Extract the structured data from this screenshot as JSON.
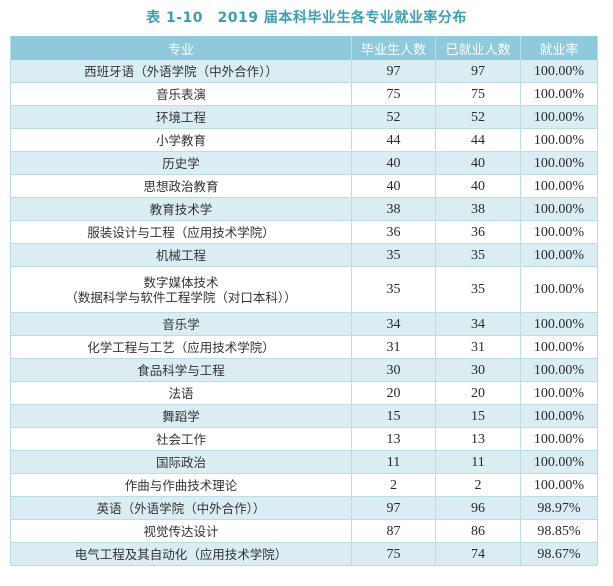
{
  "title": "表 1-10　2019 届本科毕业生各专业就业率分布",
  "table": {
    "headers": [
      "专业",
      "毕业生人数",
      "已就业人数",
      "就业率"
    ],
    "rows": [
      {
        "major": "西班牙语（外语学院（中外合作））",
        "graduates": "97",
        "employed": "97",
        "rate": "100.00%"
      },
      {
        "major": "音乐表演",
        "graduates": "75",
        "employed": "75",
        "rate": "100.00%"
      },
      {
        "major": "环境工程",
        "graduates": "52",
        "employed": "52",
        "rate": "100.00%"
      },
      {
        "major": "小学教育",
        "graduates": "44",
        "employed": "44",
        "rate": "100.00%"
      },
      {
        "major": "历史学",
        "graduates": "40",
        "employed": "40",
        "rate": "100.00%"
      },
      {
        "major": "思想政治教育",
        "graduates": "40",
        "employed": "40",
        "rate": "100.00%"
      },
      {
        "major": "教育技术学",
        "graduates": "38",
        "employed": "38",
        "rate": "100.00%"
      },
      {
        "major": "服装设计与工程（应用技术学院）",
        "graduates": "36",
        "employed": "36",
        "rate": "100.00%"
      },
      {
        "major": "机械工程",
        "graduates": "35",
        "employed": "35",
        "rate": "100.00%"
      },
      {
        "major": "数字媒体技术",
        "major_line2": "（数据科学与软件工程学院（对口本科））",
        "graduates": "35",
        "employed": "35",
        "rate": "100.00%"
      },
      {
        "major": "音乐学",
        "graduates": "34",
        "employed": "34",
        "rate": "100.00%"
      },
      {
        "major": "化学工程与工艺（应用技术学院）",
        "graduates": "31",
        "employed": "31",
        "rate": "100.00%"
      },
      {
        "major": "食品科学与工程",
        "graduates": "30",
        "employed": "30",
        "rate": "100.00%"
      },
      {
        "major": "法语",
        "graduates": "20",
        "employed": "20",
        "rate": "100.00%"
      },
      {
        "major": "舞蹈学",
        "graduates": "15",
        "employed": "15",
        "rate": "100.00%"
      },
      {
        "major": "社会工作",
        "graduates": "13",
        "employed": "13",
        "rate": "100.00%"
      },
      {
        "major": "国际政治",
        "graduates": "11",
        "employed": "11",
        "rate": "100.00%"
      },
      {
        "major": "作曲与作曲技术理论",
        "graduates": "2",
        "employed": "2",
        "rate": "100.00%"
      },
      {
        "major": "英语（外语学院（中外合作））",
        "graduates": "97",
        "employed": "96",
        "rate": "98.97%"
      },
      {
        "major": "视觉传达设计",
        "graduates": "87",
        "employed": "86",
        "rate": "98.85%"
      },
      {
        "major": "电气工程及其自动化（应用技术学院）",
        "graduates": "75",
        "employed": "74",
        "rate": "98.67%"
      }
    ]
  },
  "colors": {
    "title": "#3a9fb5",
    "header_bg": "#8ecadb",
    "stripe_bg": "#daedf3",
    "border": "#bcdde6"
  }
}
